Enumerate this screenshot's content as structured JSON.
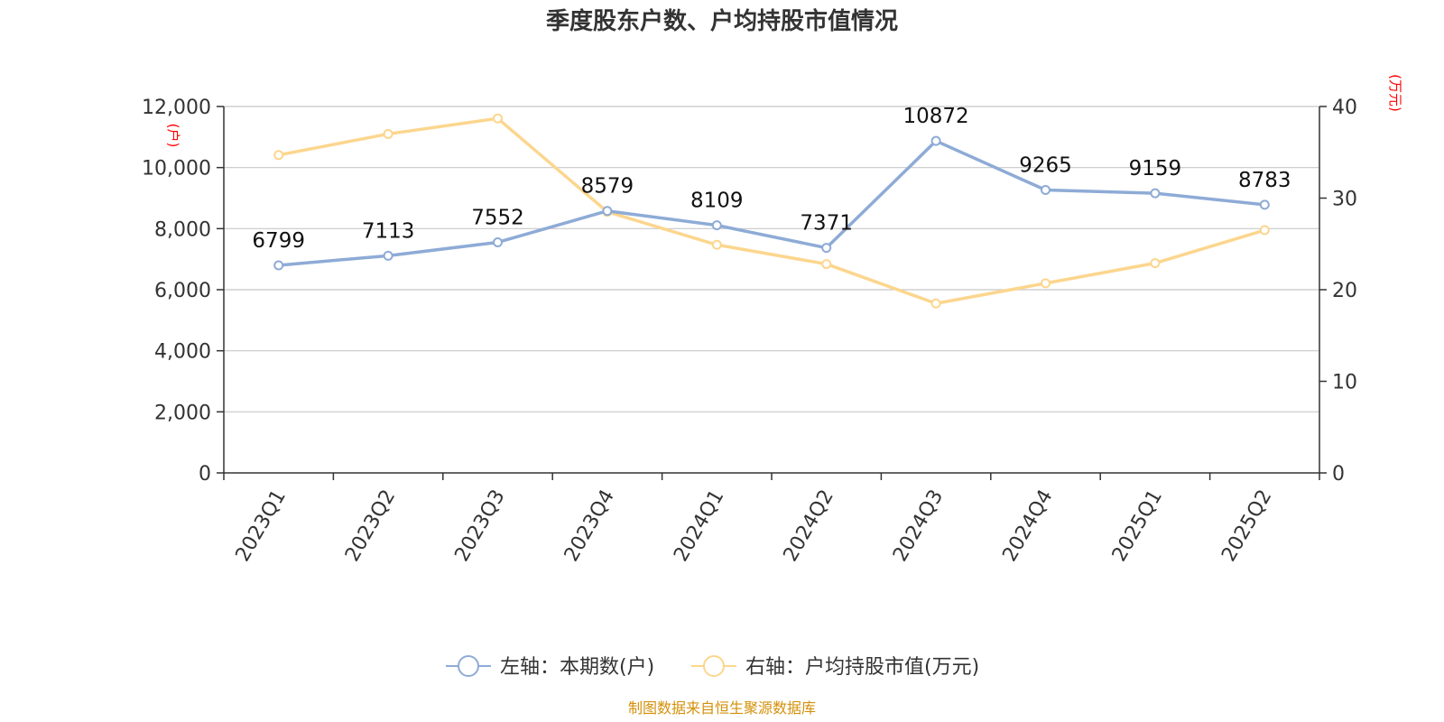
{
  "chart_data": {
    "type": "line",
    "title": "季度股东户数、户均持股市值情况",
    "categories": [
      "2023Q1",
      "2023Q2",
      "2023Q3",
      "2023Q4",
      "2024Q1",
      "2024Q2",
      "2024Q3",
      "2024Q4",
      "2025Q1",
      "2025Q2"
    ],
    "series": [
      {
        "name": "左轴：本期数(户)",
        "axis": "left",
        "color": "#8eabd6",
        "values": [
          6799,
          7113,
          7552,
          8579,
          8109,
          7371,
          10872,
          9265,
          9159,
          8783
        ],
        "data_labels": [
          "6799",
          "7113",
          "7552",
          "8579",
          "8109",
          "7371",
          "10872",
          "9265",
          "9159",
          "8783"
        ]
      },
      {
        "name": "右轴：户均持股市值(万元)",
        "axis": "right",
        "color": "#fcd68e",
        "values": [
          34.7,
          37.0,
          38.7,
          28.5,
          24.9,
          22.8,
          18.5,
          20.7,
          22.9,
          26.5
        ]
      }
    ],
    "y_left": {
      "unit": "(户)",
      "ylim": [
        0,
        12000
      ],
      "ticks": [
        0,
        2000,
        4000,
        6000,
        8000,
        10000,
        12000
      ],
      "tick_labels": [
        "0",
        "2,000",
        "4,000",
        "6,000",
        "8,000",
        "10,000",
        "12,000"
      ]
    },
    "y_right": {
      "unit": "(万元)",
      "ylim": [
        0,
        40
      ],
      "ticks": [
        0,
        10,
        20,
        30,
        40
      ],
      "tick_labels": [
        "0",
        "10",
        "20",
        "30",
        "40"
      ]
    },
    "grid": true,
    "legend_position": "bottom",
    "source": "制图数据来自恒生聚源数据库"
  }
}
